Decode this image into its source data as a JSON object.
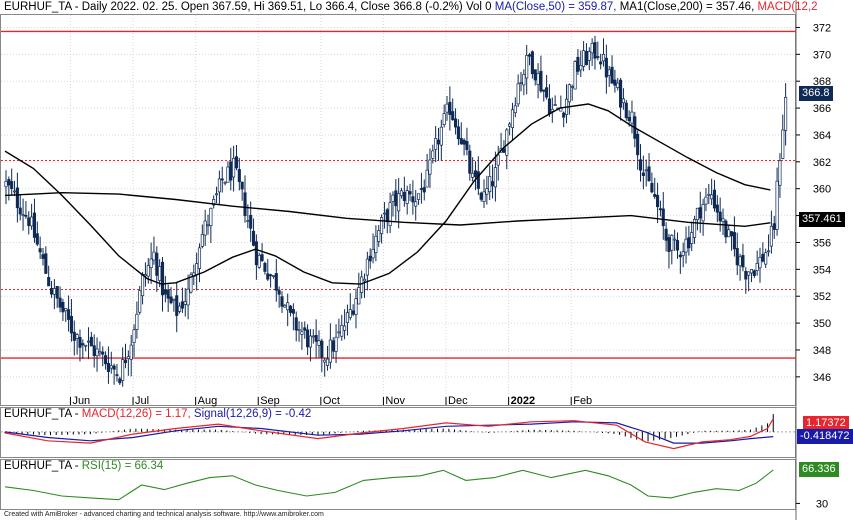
{
  "price_header": {
    "text_main": "EURHUF_TA - Daily 2022. 02. 25. Open 367.59, Hi 369.51, Lo 366.4, Close 366.8 (-0.2%) Vol 0 ",
    "text_ma50": "MA(Close,50) = 359.87,",
    "text_ma200": " MA1(Close,200) = 357.46,",
    "text_macd": " MACD(12,2"
  },
  "macd_header": {
    "text_main": "EURHUF_TA - ",
    "text_macd": "MACD(12,26) = 1.17,",
    "text_signal": " Signal(12,26,9) = -0.42"
  },
  "rsi_header": {
    "text_main": "EURHUF_TA - ",
    "text_rsi": "RSI(15) = 66.34"
  },
  "footer": "Created with AmiBroker - advanced charting and technical analysis software. http://www.amibroker.com",
  "badges": {
    "close": "366.8",
    "ma200": "357.461",
    "macd": "1.17372",
    "signal": "-0.418472",
    "rsi": "66.336"
  },
  "colors": {
    "candle": "#0e2a55",
    "ma": "#000000",
    "level": "#e8242c",
    "macd": "#e8242c",
    "signal": "#1a1aa8",
    "rsi": "#2e8b22",
    "grid": "#d8d8d8"
  },
  "chart_data": [
    {
      "type": "candlestick",
      "title": "EURHUF_TA - Daily 2022. 02. 25.",
      "ylim": [
        344.5,
        373
      ],
      "yticks": [
        346,
        348,
        350,
        352,
        354,
        356,
        358,
        360,
        362,
        364,
        366,
        368,
        370,
        372
      ],
      "x_months": [
        "Jun",
        "Jul",
        "Aug",
        "Sep",
        "Oct",
        "Nov",
        "Dec",
        "2022",
        "Feb"
      ],
      "close_path": [
        [
          0,
          360.3
        ],
        [
          8,
          357.8
        ],
        [
          16,
          352.5
        ],
        [
          24,
          349.2
        ],
        [
          32,
          347.8
        ],
        [
          40,
          346.2
        ],
        [
          44,
          348.8
        ],
        [
          48,
          353.2
        ],
        [
          52,
          355.1
        ],
        [
          56,
          351.8
        ],
        [
          60,
          350.9
        ],
        [
          64,
          352.2
        ],
        [
          68,
          356.1
        ],
        [
          72,
          358.1
        ],
        [
          76,
          360.6
        ],
        [
          80,
          361.5
        ],
        [
          84,
          358.6
        ],
        [
          88,
          355.1
        ],
        [
          92,
          353.9
        ],
        [
          96,
          352.6
        ],
        [
          100,
          350.3
        ],
        [
          104,
          349.3
        ],
        [
          108,
          348.3
        ],
        [
          112,
          347.6
        ],
        [
          116,
          348.6
        ],
        [
          120,
          350.3
        ],
        [
          124,
          352.6
        ],
        [
          128,
          355.3
        ],
        [
          132,
          357.3
        ],
        [
          136,
          358.9
        ],
        [
          140,
          359.6
        ],
        [
          144,
          359.3
        ],
        [
          148,
          360.6
        ],
        [
          152,
          363.8
        ],
        [
          156,
          366.1
        ],
        [
          160,
          363.8
        ],
        [
          164,
          360.6
        ],
        [
          168,
          359.3
        ],
        [
          172,
          361.1
        ],
        [
          176,
          364.3
        ],
        [
          180,
          367.8
        ],
        [
          184,
          369.8
        ],
        [
          188,
          367.8
        ],
        [
          192,
          365.8
        ],
        [
          196,
          366.1
        ],
        [
          200,
          368.8
        ],
        [
          204,
          369.8
        ],
        [
          208,
          370.3
        ],
        [
          212,
          368.3
        ],
        [
          216,
          366.8
        ],
        [
          220,
          365.3
        ],
        [
          224,
          361.1
        ],
        [
          228,
          359.3
        ],
        [
          232,
          356.3
        ],
        [
          236,
          355.3
        ],
        [
          240,
          356.3
        ],
        [
          244,
          358.6
        ],
        [
          248,
          359.6
        ],
        [
          252,
          357.3
        ],
        [
          256,
          355.3
        ],
        [
          260,
          353.9
        ],
        [
          264,
          354.3
        ],
        [
          268,
          355.6
        ],
        [
          270,
          357.3
        ],
        [
          272,
          362.6
        ],
        [
          274,
          366.8
        ]
      ],
      "ma50_path": [
        [
          0,
          362.8
        ],
        [
          10,
          361.5
        ],
        [
          20,
          359.5
        ],
        [
          30,
          357.3
        ],
        [
          40,
          355.0
        ],
        [
          50,
          353.3
        ],
        [
          55,
          352.9
        ],
        [
          60,
          353.0
        ],
        [
          70,
          353.8
        ],
        [
          80,
          354.9
        ],
        [
          88,
          355.5
        ],
        [
          95,
          355.0
        ],
        [
          105,
          353.8
        ],
        [
          115,
          353.0
        ],
        [
          125,
          352.9
        ],
        [
          135,
          353.7
        ],
        [
          145,
          355.3
        ],
        [
          155,
          357.6
        ],
        [
          165,
          360.6
        ],
        [
          175,
          363.0
        ],
        [
          185,
          364.8
        ],
        [
          195,
          366.0
        ],
        [
          205,
          366.3
        ],
        [
          212,
          365.8
        ],
        [
          220,
          364.7
        ],
        [
          230,
          363.5
        ],
        [
          240,
          362.3
        ],
        [
          250,
          361.2
        ],
        [
          260,
          360.3
        ],
        [
          269,
          359.9
        ]
      ],
      "ma200_path": [
        [
          0,
          359.5
        ],
        [
          20,
          359.7
        ],
        [
          40,
          359.6
        ],
        [
          60,
          359.2
        ],
        [
          80,
          358.7
        ],
        [
          100,
          358.3
        ],
        [
          120,
          357.8
        ],
        [
          140,
          357.5
        ],
        [
          160,
          357.3
        ],
        [
          180,
          357.6
        ],
        [
          200,
          357.8
        ],
        [
          220,
          358.0
        ],
        [
          240,
          357.5
        ],
        [
          260,
          357.2
        ],
        [
          269,
          357.46
        ]
      ],
      "level_lines": [
        371.7,
        362.1,
        352.5,
        347.4
      ],
      "level_styles": [
        "solid",
        "dotted",
        "dotted",
        "solid"
      ],
      "last_close": 366.8,
      "ma50_last": 359.87,
      "ma200_last": 357.46
    },
    {
      "type": "line",
      "title": "MACD(12,26)",
      "ylim": [
        -1.8,
        1.6
      ],
      "macd_path": [
        [
          0,
          -0.1
        ],
        [
          15,
          -0.8
        ],
        [
          30,
          -1.0
        ],
        [
          45,
          -0.2
        ],
        [
          60,
          0.3
        ],
        [
          75,
          0.7
        ],
        [
          90,
          0.1
        ],
        [
          110,
          -0.6
        ],
        [
          125,
          -0.1
        ],
        [
          140,
          0.3
        ],
        [
          155,
          0.8
        ],
        [
          170,
          0.5
        ],
        [
          185,
          0.9
        ],
        [
          200,
          1.0
        ],
        [
          215,
          0.6
        ],
        [
          225,
          -0.9
        ],
        [
          235,
          -1.5
        ],
        [
          245,
          -0.9
        ],
        [
          255,
          -0.7
        ],
        [
          262,
          -0.4
        ],
        [
          268,
          0.3
        ],
        [
          270,
          1.17
        ]
      ],
      "signal_path": [
        [
          0,
          0.0
        ],
        [
          15,
          -0.5
        ],
        [
          30,
          -0.8
        ],
        [
          45,
          -0.5
        ],
        [
          60,
          0.1
        ],
        [
          75,
          0.5
        ],
        [
          90,
          0.3
        ],
        [
          110,
          -0.3
        ],
        [
          125,
          -0.2
        ],
        [
          140,
          0.1
        ],
        [
          155,
          0.5
        ],
        [
          170,
          0.6
        ],
        [
          185,
          0.7
        ],
        [
          200,
          0.9
        ],
        [
          215,
          0.8
        ],
        [
          225,
          0.0
        ],
        [
          235,
          -1.0
        ],
        [
          245,
          -1.0
        ],
        [
          255,
          -0.8
        ],
        [
          262,
          -0.6
        ],
        [
          270,
          -0.42
        ]
      ],
      "last_macd": 1.17,
      "last_signal": -0.42
    },
    {
      "type": "line",
      "title": "RSI(15)",
      "ylim": [
        25,
        75
      ],
      "yticks": [
        30
      ],
      "rsi_path": [
        [
          0,
          48
        ],
        [
          10,
          44
        ],
        [
          20,
          38
        ],
        [
          30,
          36
        ],
        [
          40,
          34
        ],
        [
          48,
          50
        ],
        [
          56,
          45
        ],
        [
          64,
          52
        ],
        [
          72,
          58
        ],
        [
          80,
          60
        ],
        [
          88,
          50
        ],
        [
          96,
          44
        ],
        [
          106,
          38
        ],
        [
          116,
          42
        ],
        [
          126,
          55
        ],
        [
          136,
          58
        ],
        [
          146,
          60
        ],
        [
          154,
          66
        ],
        [
          162,
          55
        ],
        [
          172,
          58
        ],
        [
          182,
          66
        ],
        [
          192,
          58
        ],
        [
          204,
          66
        ],
        [
          212,
          60
        ],
        [
          220,
          50
        ],
        [
          226,
          38
        ],
        [
          234,
          36
        ],
        [
          242,
          42
        ],
        [
          250,
          46
        ],
        [
          258,
          44
        ],
        [
          264,
          52
        ],
        [
          270,
          66.34
        ]
      ],
      "last_rsi": 66.34
    }
  ]
}
